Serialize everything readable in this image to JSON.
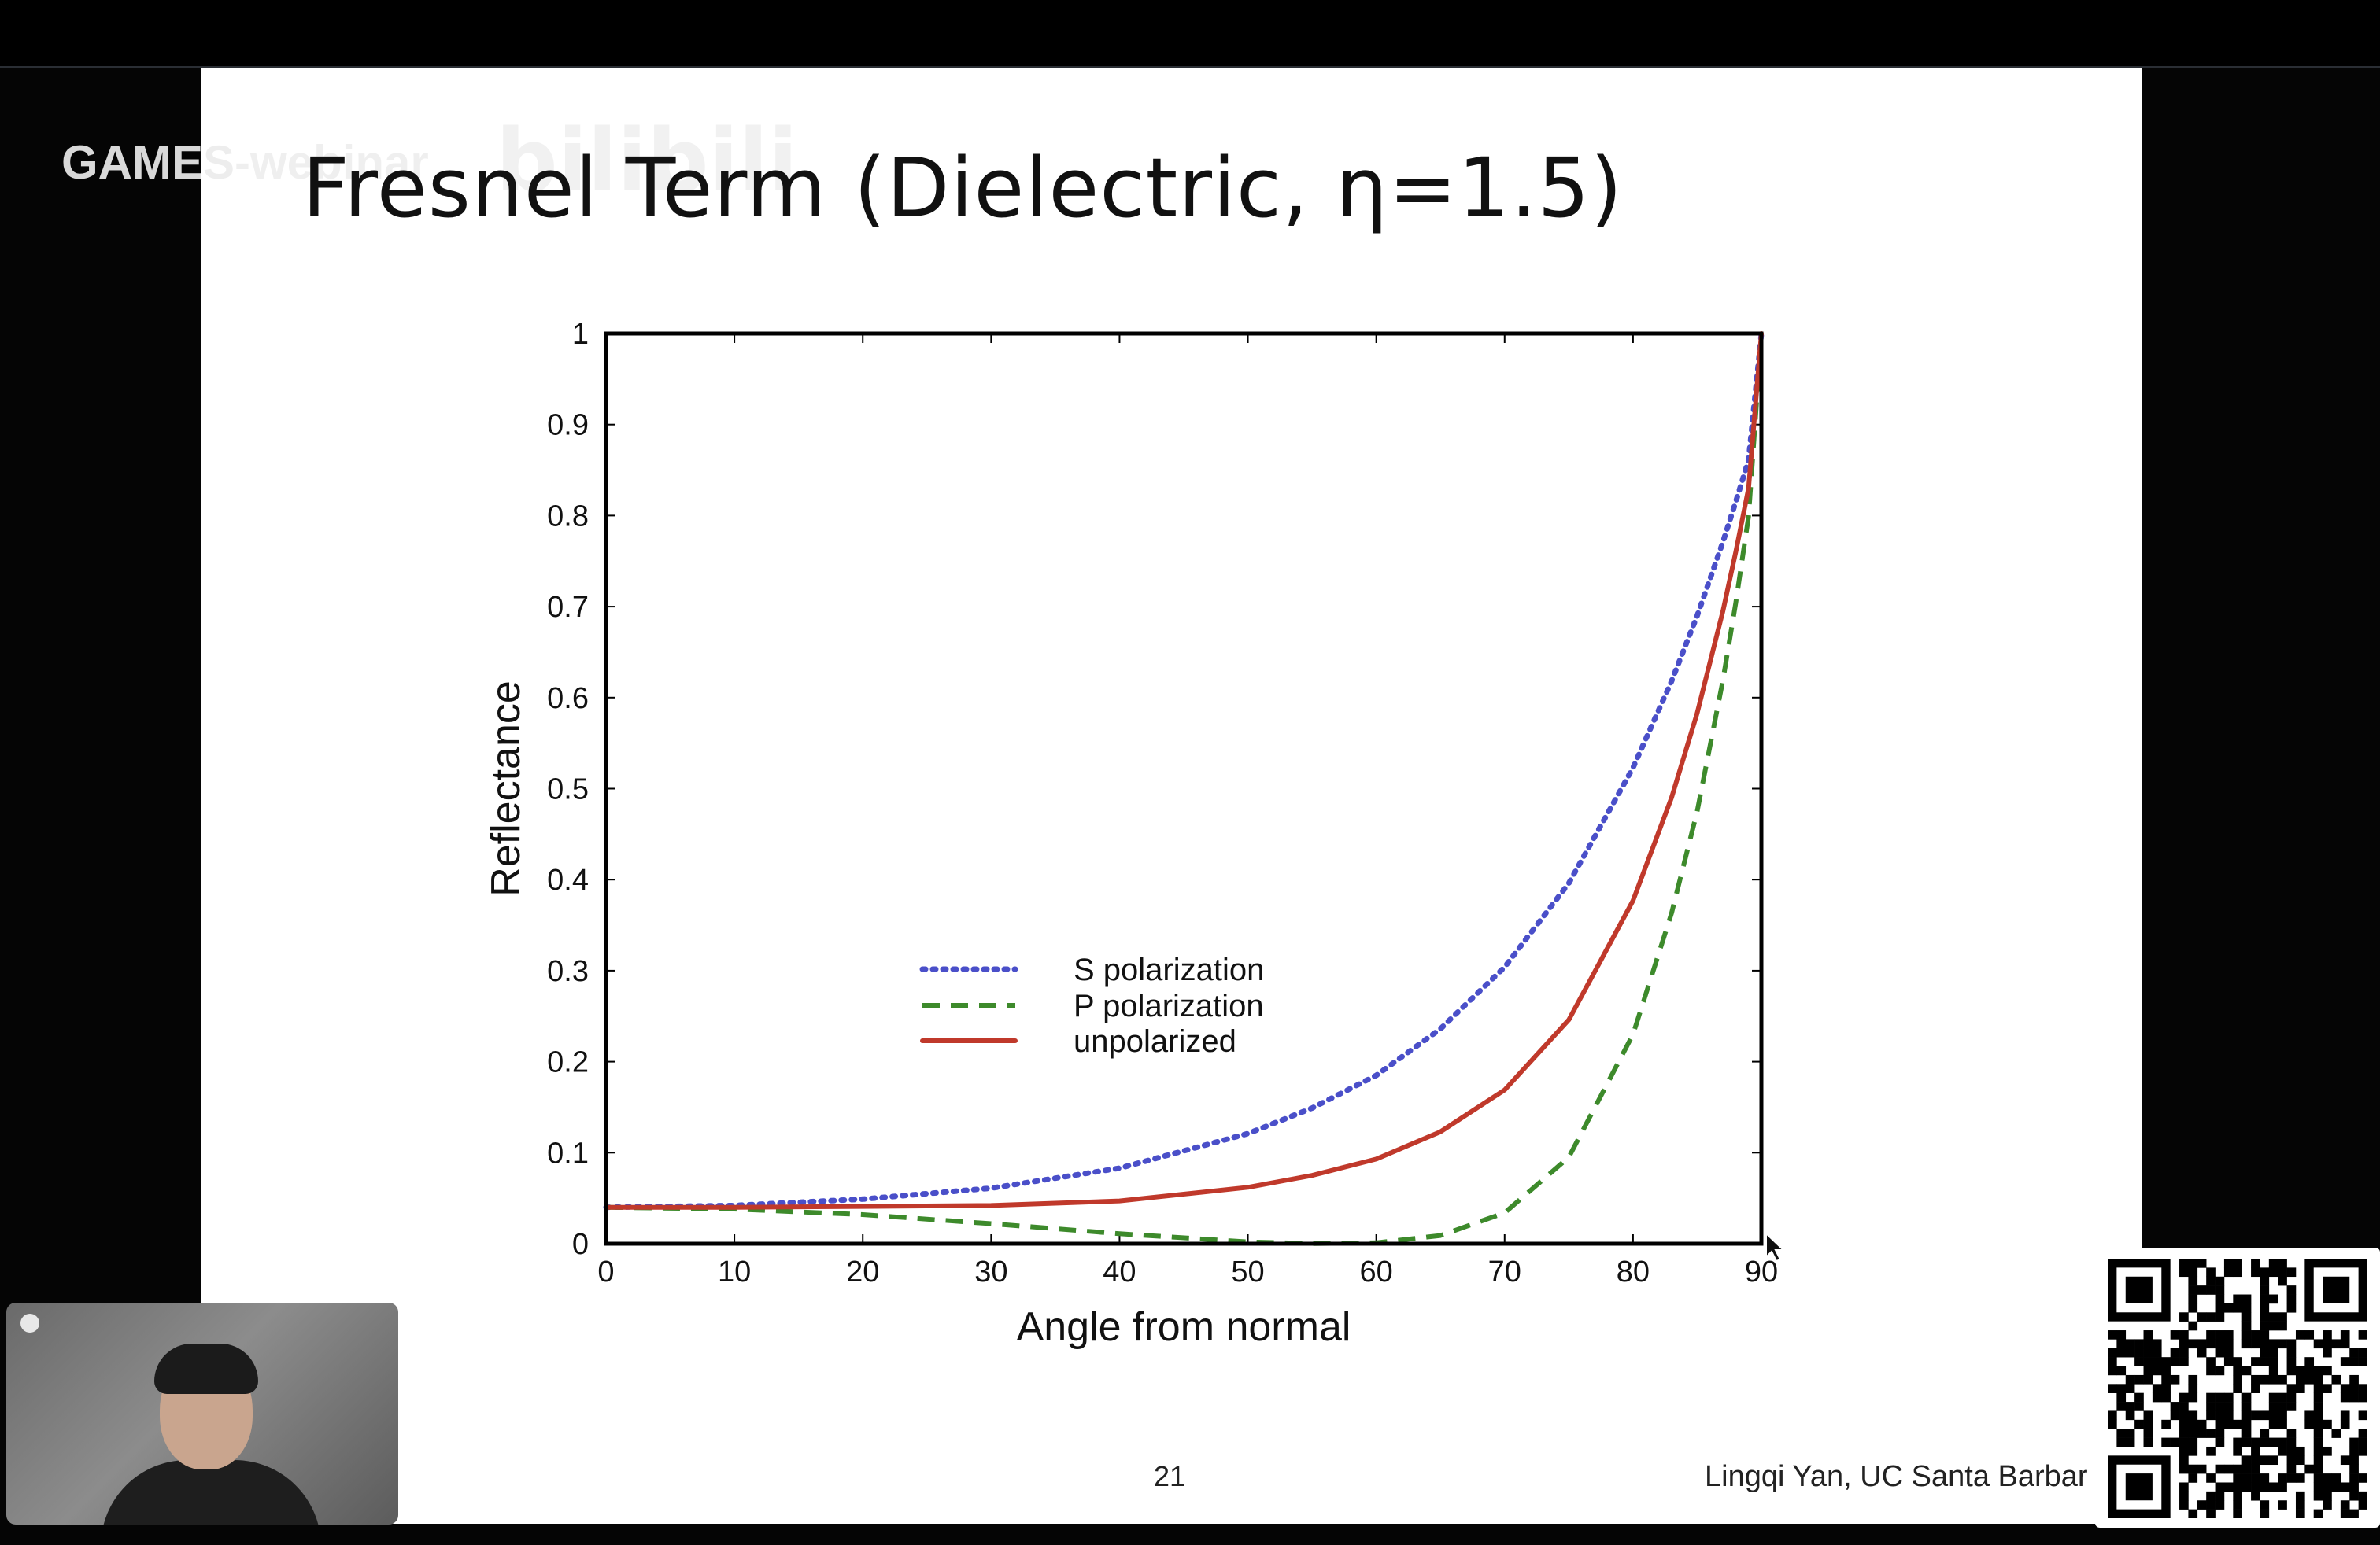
{
  "watermark": {
    "text_visible": "GAMES",
    "text_faded": "-webinar",
    "logo": "bilibili"
  },
  "slide": {
    "title": "Fresnel Term (Dielectric, η=1.5)",
    "page_number": "21",
    "credit": "Lingqi Yan, UC Santa Barbar"
  },
  "colors": {
    "s_series": "#4a4fc9",
    "p_series": "#3d8a2b",
    "unpolarized": "#c0392b"
  },
  "chart_data": {
    "type": "line",
    "xlabel": "Angle from normal",
    "ylabel": "Reflectance",
    "xlim": [
      0,
      90
    ],
    "ylim": [
      0,
      1
    ],
    "xticks": [
      "0",
      "10",
      "20",
      "30",
      "40",
      "50",
      "60",
      "70",
      "80",
      "90"
    ],
    "yticks": [
      "0",
      "0.1",
      "0.2",
      "0.3",
      "0.4",
      "0.5",
      "0.6",
      "0.7",
      "0.8",
      "0.9",
      "1"
    ],
    "grid": false,
    "legend_position": "center-left",
    "x": [
      0,
      10,
      20,
      30,
      40,
      50,
      55,
      60,
      65,
      70,
      75,
      80,
      83,
      85,
      87,
      88,
      89,
      90
    ],
    "series": [
      {
        "name": "S polarization",
        "style": "dotted",
        "values": [
          0.04,
          0.042,
          0.049,
          0.061,
          0.083,
          0.121,
          0.149,
          0.185,
          0.236,
          0.304,
          0.396,
          0.523,
          0.618,
          0.69,
          0.771,
          0.815,
          0.861,
          1.0
        ]
      },
      {
        "name": "P polarization",
        "style": "dashed",
        "values": [
          0.04,
          0.038,
          0.032,
          0.022,
          0.011,
          0.002,
          0.0002,
          0.001,
          0.009,
          0.034,
          0.095,
          0.23,
          0.363,
          0.475,
          0.619,
          0.704,
          0.799,
          1.0
        ]
      },
      {
        "name": "unpolarized",
        "style": "solid",
        "values": [
          0.04,
          0.04,
          0.041,
          0.042,
          0.047,
          0.062,
          0.075,
          0.093,
          0.123,
          0.169,
          0.246,
          0.377,
          0.49,
          0.583,
          0.695,
          0.76,
          0.83,
          1.0
        ]
      }
    ]
  }
}
